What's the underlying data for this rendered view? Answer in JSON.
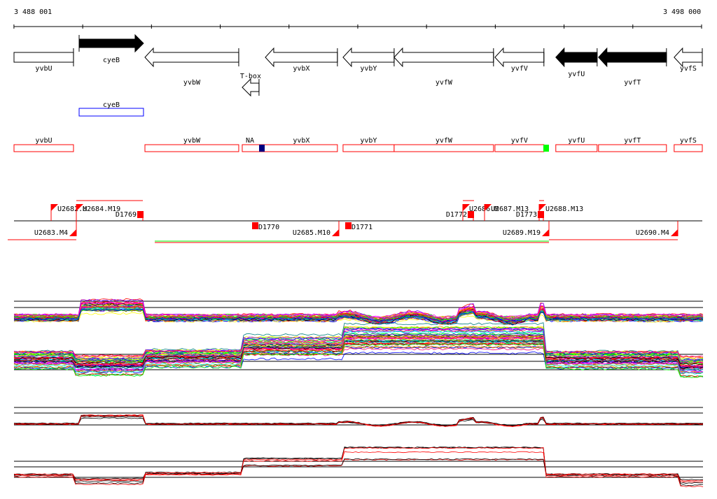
{
  "ruler": {
    "start_label": "3 488 001",
    "end_label": "3 498 000",
    "start_bp": 3488001,
    "end_bp": 3498000,
    "tick_interval_bp": 1000
  },
  "genes": [
    {
      "name": "yvbU",
      "strand": "-",
      "start": 3488001,
      "end": 3488866,
      "filled": false,
      "arrow": false
    },
    {
      "name": "cyeB",
      "strand": "+",
      "start": 3488948,
      "end": 3489884,
      "filled": true,
      "arrow": true
    },
    {
      "name": "yvbW",
      "strand": "-",
      "start": 3489905,
      "end": 3491269,
      "filled": false,
      "arrow": true
    },
    {
      "name": "T-box",
      "strand": "-",
      "start": 3491320,
      "end": 3491564,
      "filled": false,
      "arrow": true
    },
    {
      "name": "yvbX",
      "strand": "-",
      "start": 3491656,
      "end": 3492704,
      "filled": false,
      "arrow": true
    },
    {
      "name": "yvbY",
      "strand": "-",
      "start": 3492786,
      "end": 3493529,
      "filled": false,
      "arrow": true
    },
    {
      "name": "yvfW",
      "strand": "-",
      "start": 3493529,
      "end": 3494974,
      "filled": false,
      "arrow": true
    },
    {
      "name": "yvfV",
      "strand": "-",
      "start": 3494995,
      "end": 3495707,
      "filled": false,
      "arrow": true
    },
    {
      "name": "yvfU",
      "strand": "-",
      "start": 3495880,
      "end": 3496481,
      "filled": true,
      "arrow": true
    },
    {
      "name": "yvfT",
      "strand": "-",
      "start": 3496501,
      "end": 3497489,
      "filled": true,
      "arrow": true
    },
    {
      "name": "yvfS",
      "strand": "-",
      "start": 3497601,
      "end": 3498018,
      "filled": false,
      "arrow": true
    }
  ],
  "blue_annotation": {
    "name": "cyeB",
    "start": 3488948,
    "end": 3489884,
    "color": "#0000ff"
  },
  "red_annotations": [
    {
      "name": "yvbU",
      "start": 3488001,
      "end": 3488866
    },
    {
      "name": "yvbW",
      "start": 3489905,
      "end": 3491269
    },
    {
      "name": "NA",
      "start": 3491320,
      "end": 3492704,
      "marker_color": "#000080"
    },
    {
      "name": "yvbX",
      "start": 3491656,
      "end": 3492704,
      "label_only": true
    },
    {
      "name": "yvbY",
      "start": 3492786,
      "end": 3493529
    },
    {
      "name": "yvfW",
      "start": 3493529,
      "end": 3494974
    },
    {
      "name": "yvfV",
      "start": 3494995,
      "end": 3495707,
      "marker_color": "#00ff00"
    },
    {
      "name": "yvfU",
      "start": 3495880,
      "end": 3496481
    },
    {
      "name": "yvfT",
      "start": 3496501,
      "end": 3497489
    },
    {
      "name": "yvfS",
      "start": 3497601,
      "end": 3498018
    }
  ],
  "transcripts": [
    {
      "label": "U2682.M"
    },
    {
      "label": "U2684.M19"
    },
    {
      "label": "D1769"
    },
    {
      "label": "U2683.M4"
    },
    {
      "label": "D1770"
    },
    {
      "label": "U2685.M10"
    },
    {
      "label": "D1771"
    },
    {
      "label": "D1772"
    },
    {
      "label": "U2686.M"
    },
    {
      "label": "U2687.M13"
    },
    {
      "label": "D1773"
    },
    {
      "label": "U2688.M13"
    },
    {
      "label": "U2689.M19"
    },
    {
      "label": "U2690.M4"
    }
  ],
  "colors": {
    "annotation": "#ff0000",
    "transcript": "#ff0000",
    "green": "#00ff00",
    "blue": "#0000ff"
  }
}
